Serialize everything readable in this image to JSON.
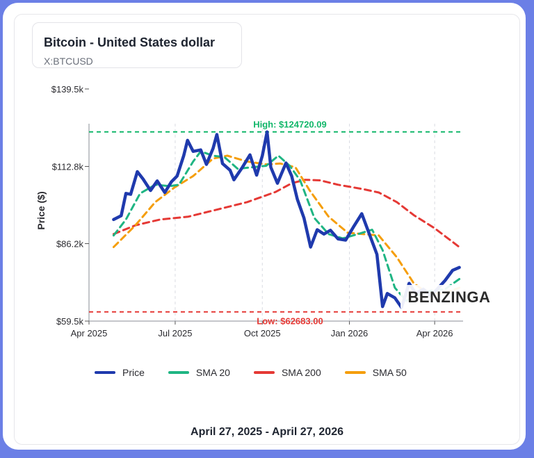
{
  "header": {
    "title": "Bitcoin - United States dollar",
    "symbol": "X:BTCUSD"
  },
  "footer": {
    "date_range": "April 27, 2025 - April 27, 2026"
  },
  "watermark": "BENZINGA",
  "chart_data": {
    "type": "line",
    "ylabel": "Price ($)",
    "ylim": [
      59500,
      139500
    ],
    "xlim": [
      "2025-04-01",
      "2026-05-01"
    ],
    "y_ticks": [
      {
        "value": 59500,
        "label": "$59.5k"
      },
      {
        "value": 86200,
        "label": "$86.2k"
      },
      {
        "value": 112800,
        "label": "$112.8k"
      },
      {
        "value": 139500,
        "label": "$139.5k"
      }
    ],
    "x_ticks": [
      {
        "date": "2025-04-01",
        "label": "Apr 2025"
      },
      {
        "date": "2025-07-01",
        "label": "Jul 2025"
      },
      {
        "date": "2025-10-01",
        "label": "Oct 2025"
      },
      {
        "date": "2026-01-01",
        "label": "Jan 2026"
      },
      {
        "date": "2026-04-01",
        "label": "Apr 2026"
      }
    ],
    "grid": "vertical dashed",
    "annotations": [
      {
        "label": "High: $124720.09",
        "value": 124720.09,
        "color": "#12b76a"
      },
      {
        "label": "Low: $62683.00",
        "value": 62683.0,
        "color": "#e53935"
      }
    ],
    "series": [
      {
        "name": "Price",
        "color": "#1f3aad",
        "dashed": false,
        "points": [
          [
            "2025-04-27",
            94500
          ],
          [
            "2025-05-05",
            95800
          ],
          [
            "2025-05-10",
            103500
          ],
          [
            "2025-05-15",
            103200
          ],
          [
            "2025-05-22",
            111000
          ],
          [
            "2025-05-28",
            108500
          ],
          [
            "2025-06-05",
            104500
          ],
          [
            "2025-06-12",
            107800
          ],
          [
            "2025-06-20",
            103800
          ],
          [
            "2025-06-27",
            107500
          ],
          [
            "2025-07-03",
            109500
          ],
          [
            "2025-07-10",
            116500
          ],
          [
            "2025-07-14",
            121800
          ],
          [
            "2025-07-20",
            118000
          ],
          [
            "2025-07-28",
            118500
          ],
          [
            "2025-08-03",
            113500
          ],
          [
            "2025-08-10",
            119000
          ],
          [
            "2025-08-14",
            123800
          ],
          [
            "2025-08-20",
            113800
          ],
          [
            "2025-08-28",
            111500
          ],
          [
            "2025-09-01",
            108200
          ],
          [
            "2025-09-10",
            112500
          ],
          [
            "2025-09-18",
            116800
          ],
          [
            "2025-09-25",
            109800
          ],
          [
            "2025-10-01",
            116500
          ],
          [
            "2025-10-06",
            124700
          ],
          [
            "2025-10-10",
            112500
          ],
          [
            "2025-10-17",
            107000
          ],
          [
            "2025-10-26",
            114000
          ],
          [
            "2025-11-01",
            109500
          ],
          [
            "2025-11-07",
            101500
          ],
          [
            "2025-11-14",
            95000
          ],
          [
            "2025-11-21",
            85000
          ],
          [
            "2025-11-28",
            91000
          ],
          [
            "2025-12-05",
            89500
          ],
          [
            "2025-12-12",
            90800
          ],
          [
            "2025-12-20",
            87800
          ],
          [
            "2025-12-28",
            87400
          ],
          [
            "2026-01-05",
            91800
          ],
          [
            "2026-01-14",
            96500
          ],
          [
            "2026-01-22",
            89500
          ],
          [
            "2026-01-30",
            82500
          ],
          [
            "2026-02-05",
            64500
          ],
          [
            "2026-02-10",
            69000
          ],
          [
            "2026-02-18",
            67500
          ],
          [
            "2026-02-25",
            64200
          ],
          [
            "2026-03-05",
            72500
          ],
          [
            "2026-03-12",
            69000
          ],
          [
            "2026-03-20",
            70500
          ],
          [
            "2026-03-28",
            68200
          ],
          [
            "2026-04-05",
            71000
          ],
          [
            "2026-04-12",
            73500
          ],
          [
            "2026-04-20",
            77000
          ],
          [
            "2026-04-27",
            78000
          ]
        ]
      },
      {
        "name": "SMA 20",
        "color": "#1fb583",
        "dashed": true,
        "points": [
          [
            "2025-04-27",
            89000
          ],
          [
            "2025-05-10",
            94500
          ],
          [
            "2025-05-25",
            103500
          ],
          [
            "2025-06-10",
            106500
          ],
          [
            "2025-06-25",
            106000
          ],
          [
            "2025-07-05",
            106500
          ],
          [
            "2025-07-20",
            114500
          ],
          [
            "2025-07-28",
            118000
          ],
          [
            "2025-08-10",
            116500
          ],
          [
            "2025-08-22",
            116000
          ],
          [
            "2025-09-05",
            112000
          ],
          [
            "2025-09-20",
            112500
          ],
          [
            "2025-10-05",
            113000
          ],
          [
            "2025-10-18",
            116500
          ],
          [
            "2025-10-30",
            113000
          ],
          [
            "2025-11-10",
            108000
          ],
          [
            "2025-11-25",
            95000
          ],
          [
            "2025-12-10",
            89500
          ],
          [
            "2025-12-25",
            88000
          ],
          [
            "2026-01-10",
            89500
          ],
          [
            "2026-01-25",
            91000
          ],
          [
            "2026-02-05",
            84000
          ],
          [
            "2026-02-18",
            71000
          ],
          [
            "2026-03-02",
            66500
          ],
          [
            "2026-03-15",
            68500
          ],
          [
            "2026-03-28",
            70000
          ],
          [
            "2026-04-12",
            70500
          ],
          [
            "2026-04-27",
            74000
          ]
        ]
      },
      {
        "name": "SMA 200",
        "color": "#e53935",
        "dashed": true,
        "points": [
          [
            "2025-04-27",
            89500
          ],
          [
            "2025-05-20",
            92500
          ],
          [
            "2025-06-15",
            94500
          ],
          [
            "2025-07-15",
            95500
          ],
          [
            "2025-08-15",
            98000
          ],
          [
            "2025-09-15",
            100500
          ],
          [
            "2025-10-15",
            104000
          ],
          [
            "2025-11-01",
            107000
          ],
          [
            "2025-11-15",
            108200
          ],
          [
            "2025-12-01",
            108000
          ],
          [
            "2025-12-20",
            106500
          ],
          [
            "2026-01-15",
            105000
          ],
          [
            "2026-02-01",
            103800
          ],
          [
            "2026-02-20",
            100500
          ],
          [
            "2026-03-10",
            96000
          ],
          [
            "2026-04-01",
            91500
          ],
          [
            "2026-04-27",
            85000
          ]
        ]
      },
      {
        "name": "SMA 50",
        "color": "#f59e0b",
        "dashed": true,
        "points": [
          [
            "2025-04-27",
            85000
          ],
          [
            "2025-05-20",
            92500
          ],
          [
            "2025-06-10",
            100500
          ],
          [
            "2025-06-30",
            105500
          ],
          [
            "2025-07-20",
            109500
          ],
          [
            "2025-08-10",
            115500
          ],
          [
            "2025-08-25",
            116500
          ],
          [
            "2025-09-15",
            114500
          ],
          [
            "2025-10-05",
            113500
          ],
          [
            "2025-10-20",
            113800
          ],
          [
            "2025-11-05",
            112500
          ],
          [
            "2025-11-20",
            104500
          ],
          [
            "2025-12-10",
            95500
          ],
          [
            "2025-12-30",
            90000
          ],
          [
            "2026-01-15",
            89500
          ],
          [
            "2026-02-01",
            89000
          ],
          [
            "2026-02-20",
            81500
          ],
          [
            "2026-03-10",
            72500
          ],
          [
            "2026-03-25",
            69000
          ],
          [
            "2026-04-10",
            69000
          ],
          [
            "2026-04-27",
            71000
          ]
        ]
      }
    ]
  }
}
